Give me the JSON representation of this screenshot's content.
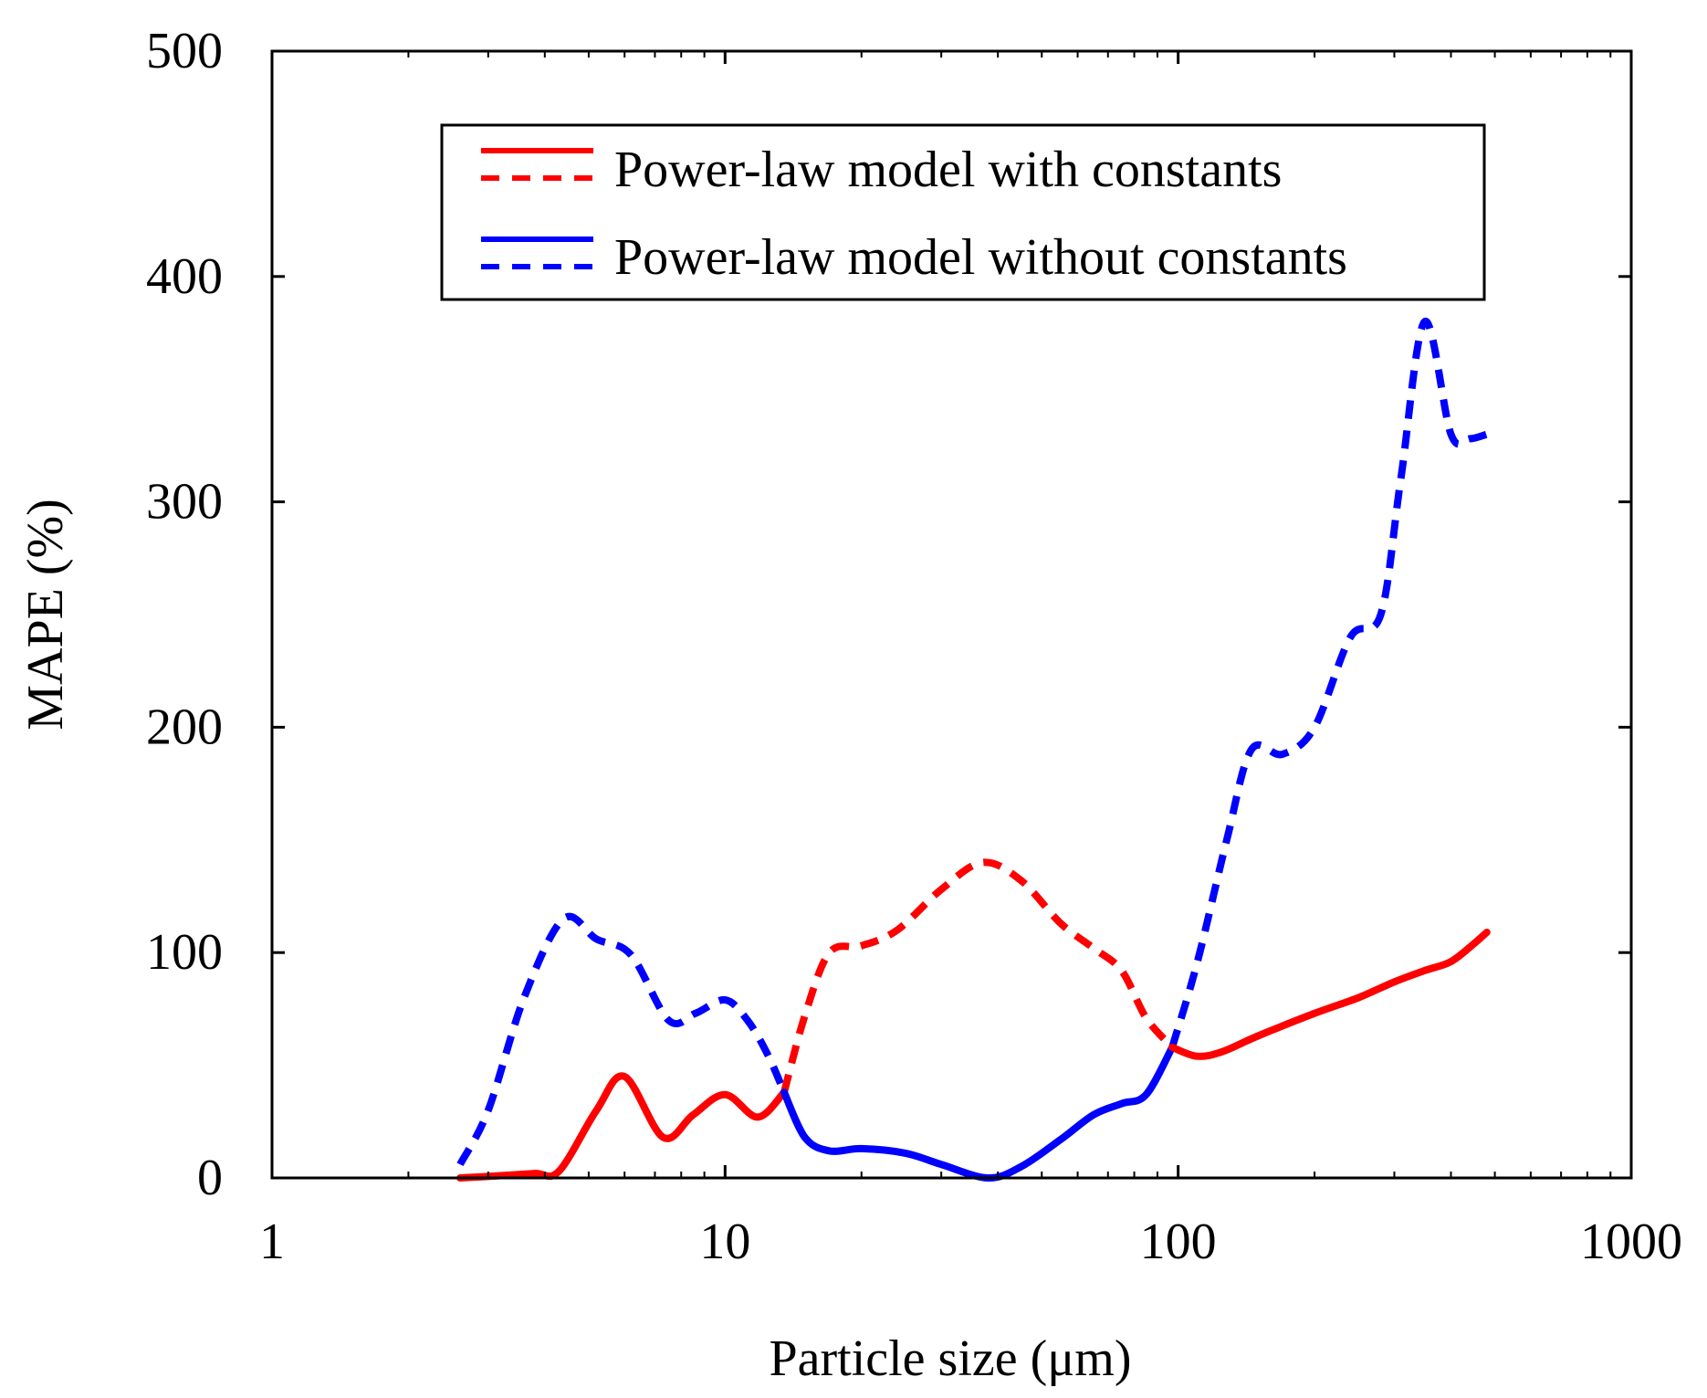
{
  "chart_data": {
    "type": "line",
    "xscale": "log",
    "xlim": [
      1,
      1000
    ],
    "ylim": [
      0,
      500
    ],
    "xlabel": "Particle size (μm)",
    "ylabel": "MAPE (%)",
    "xticks": [
      "1",
      "10",
      "100",
      "1000"
    ],
    "xtick_values": [
      1,
      10,
      100,
      1000
    ],
    "yticks": [
      "0",
      "100",
      "200",
      "300",
      "400",
      "500"
    ],
    "ytick_values": [
      0,
      100,
      200,
      300,
      400,
      500
    ],
    "legend": {
      "position": "top-center",
      "entries": [
        {
          "label": "Power-law model with constants",
          "color": "#ff0000",
          "styles": [
            "solid",
            "dashed"
          ]
        },
        {
          "label": "Power-law model without constants",
          "color": "#0000ff",
          "styles": [
            "solid",
            "dashed"
          ]
        }
      ]
    },
    "series": [
      {
        "name": "Power-law model without constants (dashed)",
        "color": "#0000ff",
        "style": "dashed",
        "x": [
          2.6,
          3.0,
          3.6,
          4.4,
          5.2,
          6.2,
          7.5,
          8.6,
          10.0,
          11.2,
          12.4,
          13.5
        ],
        "y": [
          6,
          30,
          80,
          115,
          106,
          99,
          70,
          73,
          79,
          70,
          55,
          38
        ]
      },
      {
        "name": "Power-law model with constants (solid)",
        "color": "#ff0000",
        "style": "solid",
        "x": [
          2.6,
          3.2,
          3.8,
          4.3,
          5.2,
          6.0,
          7.3,
          8.5,
          10.0,
          11.8,
          13.5
        ],
        "y": [
          0,
          1,
          2,
          3,
          30,
          45,
          18,
          28,
          37,
          27,
          38
        ]
      },
      {
        "name": "Power-law model with constants (dashed)",
        "color": "#ff0000",
        "style": "dashed",
        "x": [
          13.5,
          15.0,
          17.0,
          20.0,
          24.0,
          30.0,
          37.0,
          45.0,
          55.0,
          65.0,
          75.0,
          85.0,
          97.0
        ],
        "y": [
          38,
          72,
          100,
          103,
          110,
          128,
          140,
          132,
          113,
          102,
          92,
          71,
          58
        ]
      },
      {
        "name": "Power-law model without constants (solid)",
        "color": "#0000ff",
        "style": "solid",
        "x": [
          13.5,
          15.0,
          17.0,
          20.0,
          25.0,
          30.0,
          38.0,
          45.0,
          55.0,
          65.0,
          75.0,
          85.0,
          97.0
        ],
        "y": [
          38,
          18,
          12,
          13,
          11,
          6,
          0,
          5,
          17,
          28,
          33,
          37,
          58
        ]
      },
      {
        "name": "Power-law model without constants (dashed)",
        "color": "#0000ff",
        "style": "dashed",
        "x": [
          97.0,
          110.0,
          128.0,
          145.0,
          170.0,
          200.0,
          240.0,
          280.0,
          310.0,
          350.0,
          400.0,
          440.0,
          480.0
        ],
        "y": [
          58,
          95,
          150,
          190,
          188,
          200,
          240,
          250,
          310,
          380,
          330,
          328,
          330
        ]
      },
      {
        "name": "Power-law model with constants (solid)",
        "color": "#ff0000",
        "style": "solid",
        "x": [
          97.0,
          110.0,
          125.0,
          150.0,
          200.0,
          250.0,
          300.0,
          350.0,
          400.0,
          450.0,
          480.0
        ],
        "y": [
          58,
          54,
          56,
          63,
          73,
          80,
          87,
          92,
          96,
          104,
          109
        ]
      }
    ]
  }
}
